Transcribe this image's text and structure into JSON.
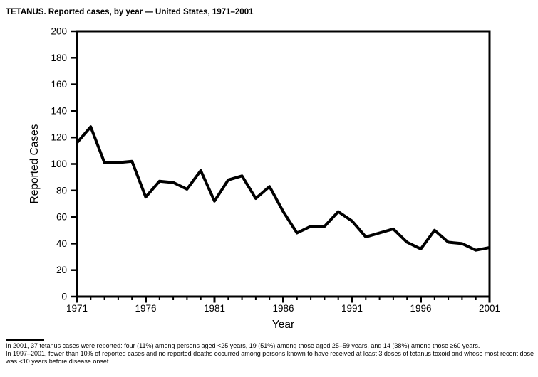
{
  "title": "TETANUS. Reported cases, by year — United States, 1971–2001",
  "chart_data": {
    "type": "line",
    "title": "TETANUS. Reported cases, by year — United States, 1971–2001",
    "xlabel": "Year",
    "ylabel": "Reported Cases",
    "x": [
      1971,
      1972,
      1973,
      1974,
      1975,
      1976,
      1977,
      1978,
      1979,
      1980,
      1981,
      1982,
      1983,
      1984,
      1985,
      1986,
      1987,
      1988,
      1989,
      1990,
      1991,
      1992,
      1993,
      1994,
      1995,
      1996,
      1997,
      1998,
      1999,
      2000,
      2001
    ],
    "values": [
      116,
      128,
      101,
      101,
      102,
      75,
      87,
      86,
      81,
      95,
      72,
      88,
      91,
      74,
      83,
      64,
      48,
      53,
      53,
      64,
      57,
      45,
      48,
      51,
      41,
      36,
      50,
      41,
      40,
      35,
      37
    ],
    "ylim": [
      0,
      200
    ],
    "ytick_step": 20,
    "xticks": [
      1971,
      1976,
      1981,
      1986,
      1991,
      1996,
      2001
    ],
    "minor_xtick_every_year": true,
    "grid": false,
    "legend": false,
    "line_color": "#000000",
    "frame": true
  },
  "footnote": {
    "line1": "In 2001, 37 tetanus cases were reported: four (11%) among persons aged <25 years, 19 (51%) among those aged 25–59 years, and 14 (38%) among those ≥60 years.",
    "line2": "In 1997–2001, fewer than 10% of reported cases and no reported deaths occurred among persons known to have received at least 3 doses of tetanus toxoid and whose most recent dose was <10 years before disease onset."
  },
  "colors": {
    "ink": "#000000",
    "background": "#ffffff"
  }
}
